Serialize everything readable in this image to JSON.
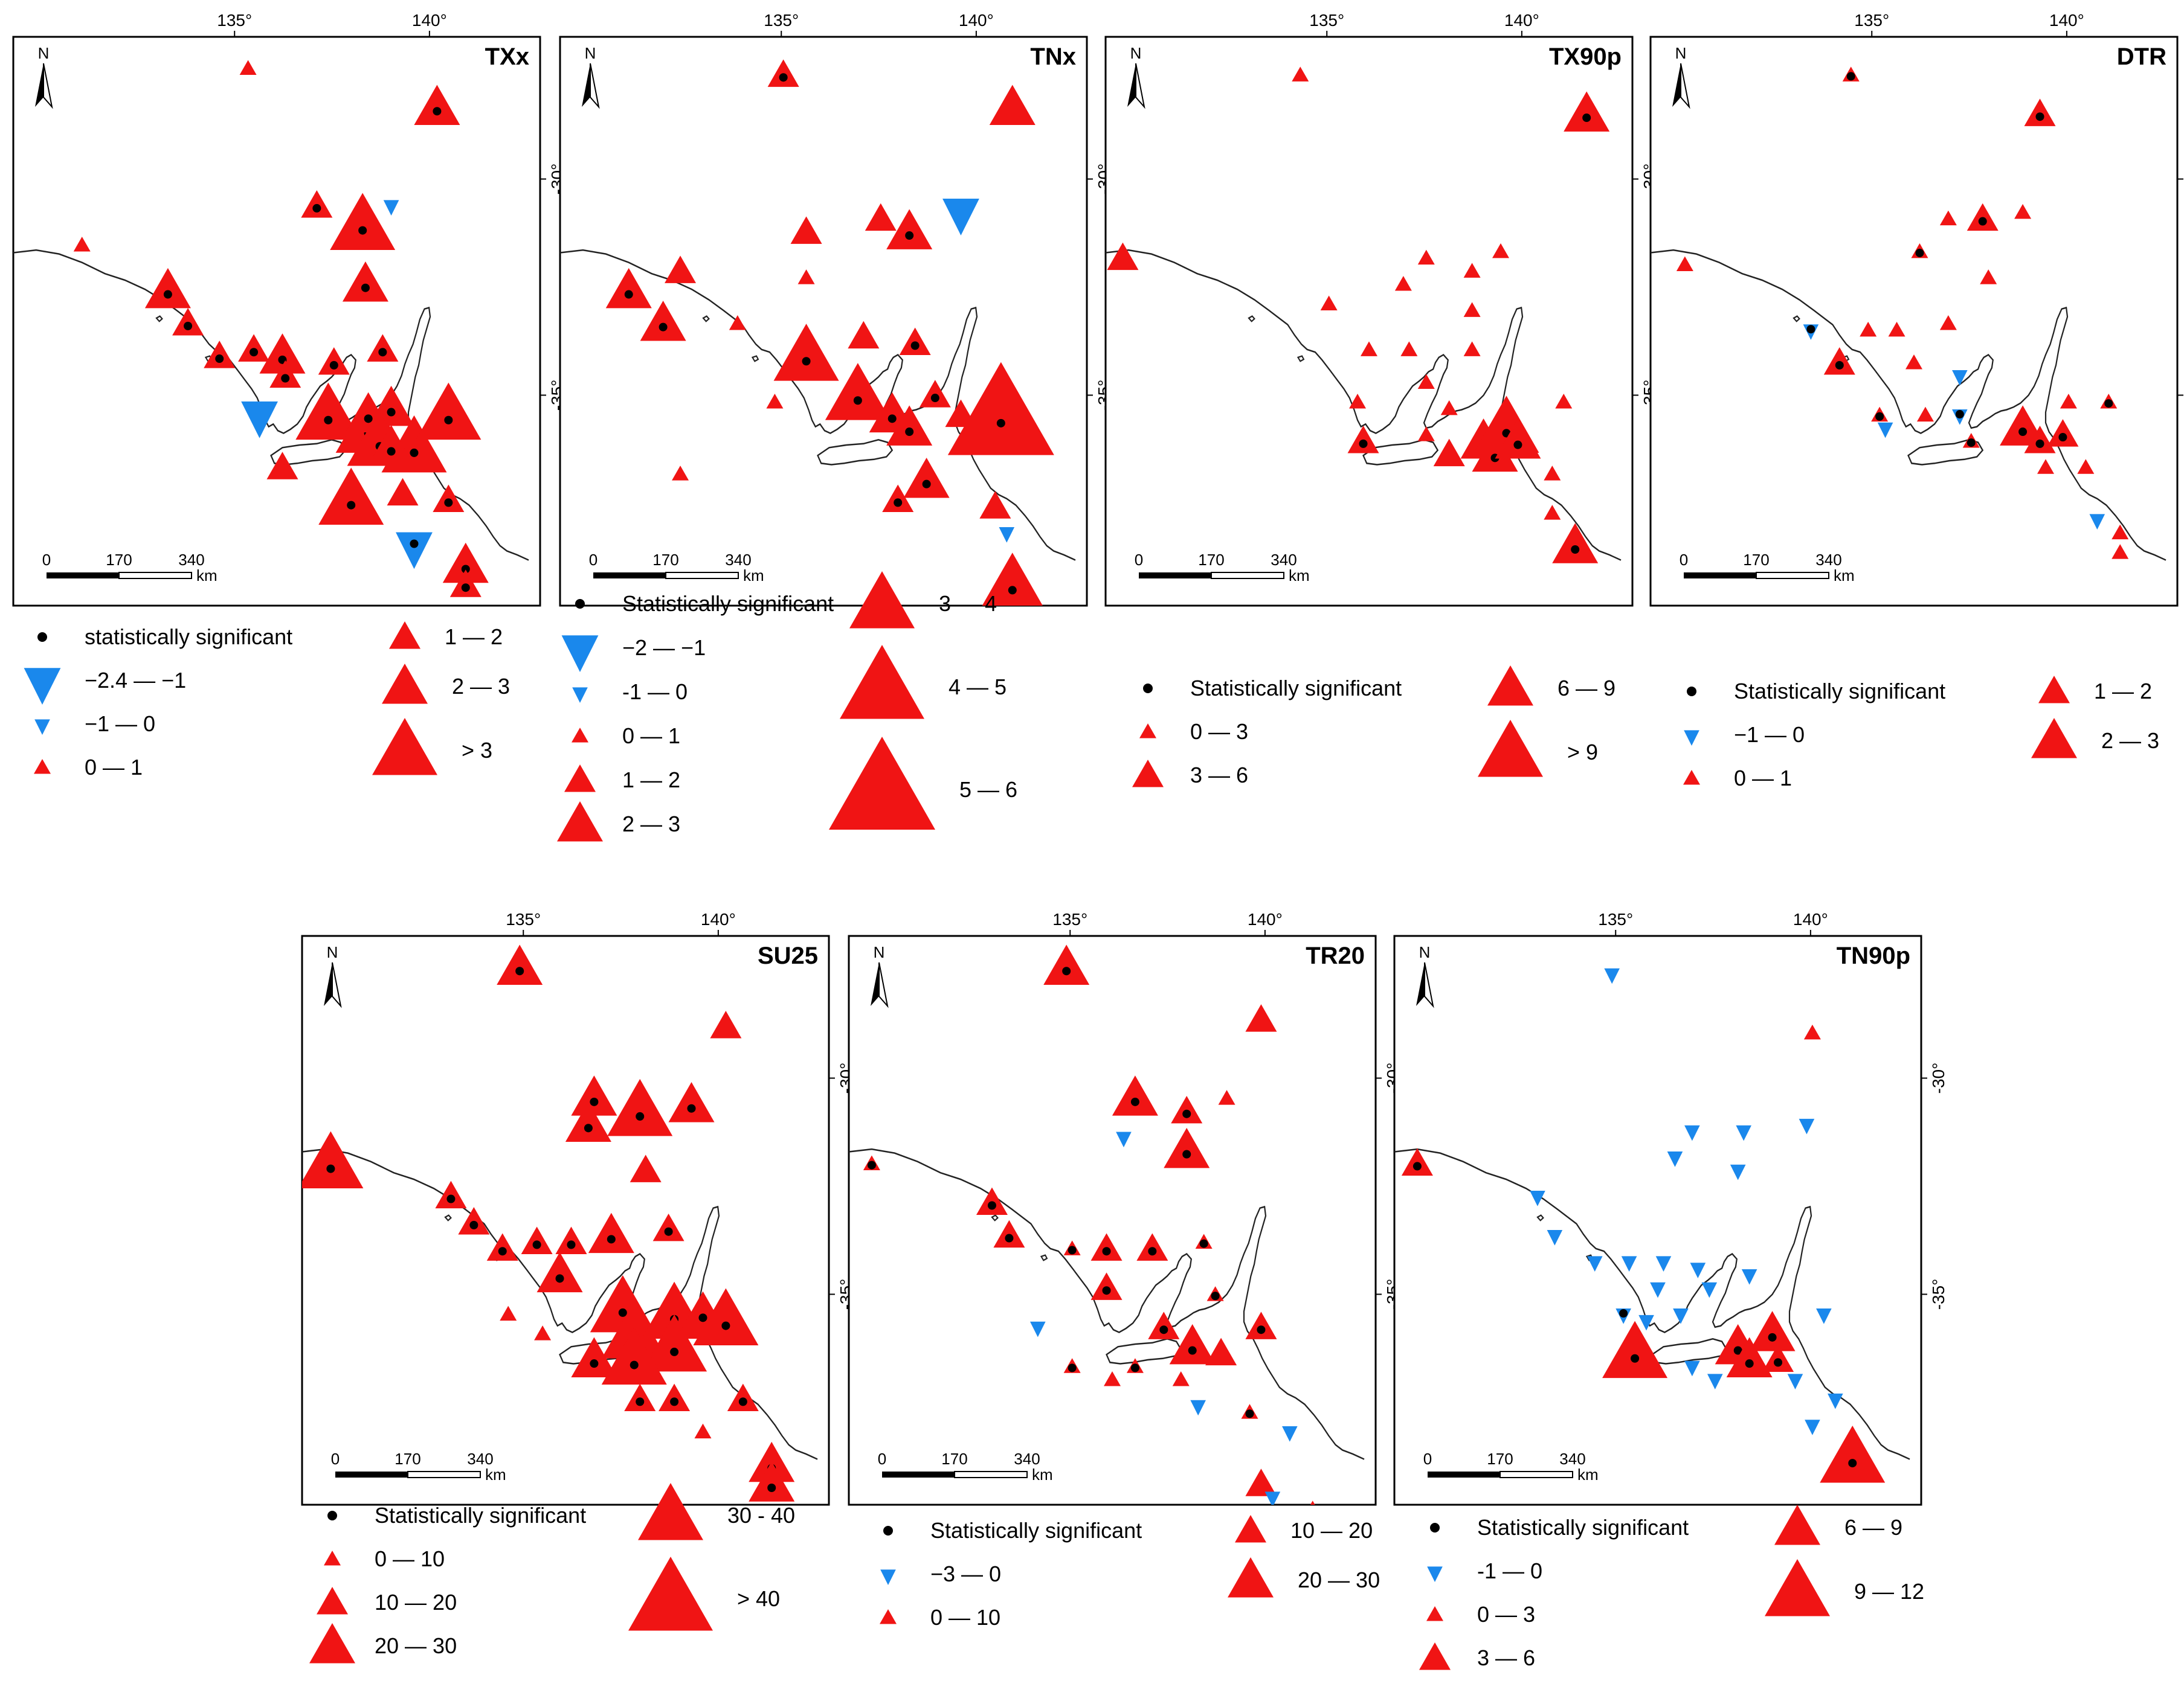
{
  "colors": {
    "increase": "#f01414",
    "decrease": "#1a88ec",
    "significant": "#000000",
    "coast": "#222222",
    "frame": "#000000"
  },
  "scale_bar": {
    "labels": [
      "0",
      "170",
      "340"
    ],
    "unit": "km"
  },
  "north_label": "N",
  "lon_ticks": [
    "135°",
    "140°"
  ],
  "lat_ticks": [
    "-30°",
    "-35°"
  ],
  "panels": [
    {
      "id": "TXx",
      "title": "TXx",
      "legend": [
        {
          "symbol": "dot",
          "label": "statistically significant"
        },
        {
          "symbol": "down",
          "size": "L",
          "label": "−2.4 — −1"
        },
        {
          "symbol": "down",
          "size": "S",
          "label": "−1 — 0"
        },
        {
          "symbol": "up",
          "size": "XS",
          "label": "0 — 1"
        },
        {
          "symbol": "up",
          "size": "M",
          "label": "1 — 2"
        },
        {
          "symbol": "up",
          "size": "L",
          "label": "2 — 3"
        },
        {
          "symbol": "up",
          "size": "XL",
          "label": "> 3"
        }
      ]
    },
    {
      "id": "TNx",
      "title": "TNx",
      "legend": [
        {
          "symbol": "dot",
          "label": "Statistically significant"
        },
        {
          "symbol": "down",
          "size": "L",
          "label": "−2 — −1"
        },
        {
          "symbol": "down",
          "size": "S",
          "label": "-1 — 0"
        },
        {
          "symbol": "up",
          "size": "XS",
          "label": "0 — 1"
        },
        {
          "symbol": "up",
          "size": "M",
          "label": "1 — 2"
        },
        {
          "symbol": "up",
          "size": "L",
          "label": "2 — 3"
        },
        {
          "symbol": "up",
          "size": "XL",
          "label": "3 — 4"
        },
        {
          "symbol": "up",
          "size": "XXL",
          "label": "4 — 5"
        },
        {
          "symbol": "up",
          "size": "XXXL",
          "label": "5 — 6"
        }
      ]
    },
    {
      "id": "TX90p",
      "title": "TX90p",
      "legend": [
        {
          "symbol": "dot",
          "label": "Statistically significant"
        },
        {
          "symbol": "up",
          "size": "XS",
          "label": "0 — 3"
        },
        {
          "symbol": "up",
          "size": "M",
          "label": "3 — 6"
        },
        {
          "symbol": "up",
          "size": "L",
          "label": "6 — 9"
        },
        {
          "symbol": "up",
          "size": "XL",
          "label": "> 9"
        }
      ]
    },
    {
      "id": "DTR",
      "title": "DTR",
      "legend": [
        {
          "symbol": "dot",
          "label": "Statistically significant"
        },
        {
          "symbol": "down",
          "size": "S",
          "label": "−1 — 0"
        },
        {
          "symbol": "up",
          "size": "XS",
          "label": "0 — 1"
        },
        {
          "symbol": "up",
          "size": "M",
          "label": "1 — 2"
        },
        {
          "symbol": "up",
          "size": "L",
          "label": "2 — 3"
        }
      ]
    },
    {
      "id": "SU25",
      "title": "SU25",
      "legend": [
        {
          "symbol": "dot",
          "label": "Statistically significant"
        },
        {
          "symbol": "up",
          "size": "XS",
          "label": "0 — 10"
        },
        {
          "symbol": "up",
          "size": "M",
          "label": "10 — 20"
        },
        {
          "symbol": "up",
          "size": "L",
          "label": "20 — 30"
        },
        {
          "symbol": "up",
          "size": "XL",
          "label": "30 - 40"
        },
        {
          "symbol": "up",
          "size": "XXL",
          "label": "> 40"
        }
      ]
    },
    {
      "id": "TR20",
      "title": "TR20",
      "legend": [
        {
          "symbol": "dot",
          "label": "Statistically significant"
        },
        {
          "symbol": "down",
          "size": "S",
          "label": "−3 — 0"
        },
        {
          "symbol": "up",
          "size": "XS",
          "label": "0 — 10"
        },
        {
          "symbol": "up",
          "size": "M",
          "label": "10 — 20"
        },
        {
          "symbol": "up",
          "size": "L",
          "label": "20 — 30"
        }
      ]
    },
    {
      "id": "TN90p",
      "title": "TN90p",
      "legend": [
        {
          "symbol": "dot",
          "label": "Statistically significant"
        },
        {
          "symbol": "down",
          "size": "S",
          "label": "-1 — 0"
        },
        {
          "symbol": "up",
          "size": "XS",
          "label": "0 — 3"
        },
        {
          "symbol": "up",
          "size": "M",
          "label": "3 — 6"
        },
        {
          "symbol": "up",
          "size": "L",
          "label": "6 — 9"
        },
        {
          "symbol": "up",
          "size": "XL",
          "label": "9 — 12"
        }
      ]
    }
  ]
}
